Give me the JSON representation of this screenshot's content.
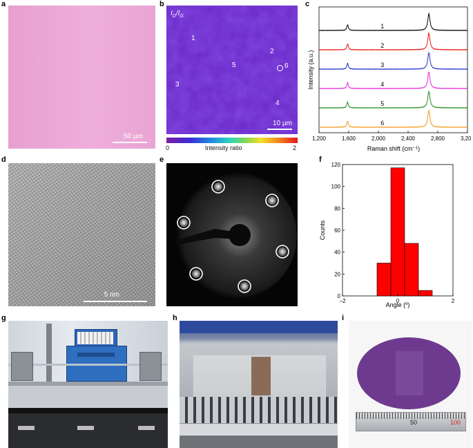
{
  "panels": {
    "a": {
      "label": "a",
      "scale": "50 µm"
    },
    "b": {
      "label": "b",
      "ratio_label": "ID/IG",
      "ratio_main1": "I",
      "ratio_sub1": "D",
      "ratio_sep": "/",
      "ratio_main2": "I",
      "ratio_sub2": "G",
      "points": [
        "1",
        "2",
        "3",
        "4",
        "5",
        "6"
      ],
      "scale": "10 µm",
      "colorbar_min": "0",
      "colorbar_max": "2",
      "colorbar_label": "Intensity ratio"
    },
    "d": {
      "label": "d",
      "scale": "5 nm"
    },
    "e": {
      "label": "e"
    },
    "g": {
      "label": "g"
    },
    "h": {
      "label": "h"
    },
    "i": {
      "label": "i",
      "ruler_numbers": [
        "50",
        "100"
      ]
    }
  },
  "colors": {
    "optical_pink": "#e9a3d3",
    "map_purple": "#6a27c8",
    "bar_red": "#ff0000",
    "raman_1": "#000000",
    "raman_2": "#e8120c",
    "raman_3": "#1f2dc8",
    "raman_4": "#e528e0",
    "raman_5": "#1e8f1e",
    "raman_6": "#f29a1c",
    "wafer_purple": "#6f3c8e"
  },
  "chart_data": [
    {
      "panel": "c",
      "type": "line",
      "xlabel": "Raman shift (cm⁻¹)",
      "ylabel": "Intensity (a.u.)",
      "xlim": [
        1200,
        3200
      ],
      "xticks": [
        "1,200",
        "1,600",
        "2,000",
        "2,400",
        "2,800",
        "3,200"
      ],
      "xtick_values": [
        1200,
        1600,
        2000,
        2400,
        2800,
        3200
      ],
      "peaks": [
        {
          "position": 1585,
          "width": 12,
          "height": 0.35
        },
        {
          "position": 2680,
          "width": 18,
          "height": 1.0
        }
      ],
      "series": [
        {
          "name": "1",
          "color": "#000000"
        },
        {
          "name": "2",
          "color": "#e8120c"
        },
        {
          "name": "3",
          "color": "#1f2dc8"
        },
        {
          "name": "4",
          "color": "#e528e0"
        },
        {
          "name": "5",
          "color": "#1e8f1e"
        },
        {
          "name": "6",
          "color": "#f29a1c"
        }
      ]
    },
    {
      "panel": "f",
      "type": "bar",
      "xlabel": "Angle (º)",
      "ylabel": "Counts",
      "xlim": [
        -2,
        2
      ],
      "ylim": [
        0,
        120
      ],
      "xticks": [
        "−2",
        "0",
        "2"
      ],
      "xtick_values": [
        -2,
        0,
        2
      ],
      "yticks": [
        "0",
        "20",
        "40",
        "60",
        "80",
        "100",
        "120"
      ],
      "ytick_values": [
        0,
        20,
        40,
        60,
        80,
        100,
        120
      ],
      "bar_width": 0.5,
      "bars": [
        {
          "x": -0.5,
          "value": 30
        },
        {
          "x": 0.0,
          "value": 117
        },
        {
          "x": 0.5,
          "value": 48
        },
        {
          "x": 1.0,
          "value": 5
        }
      ]
    }
  ]
}
